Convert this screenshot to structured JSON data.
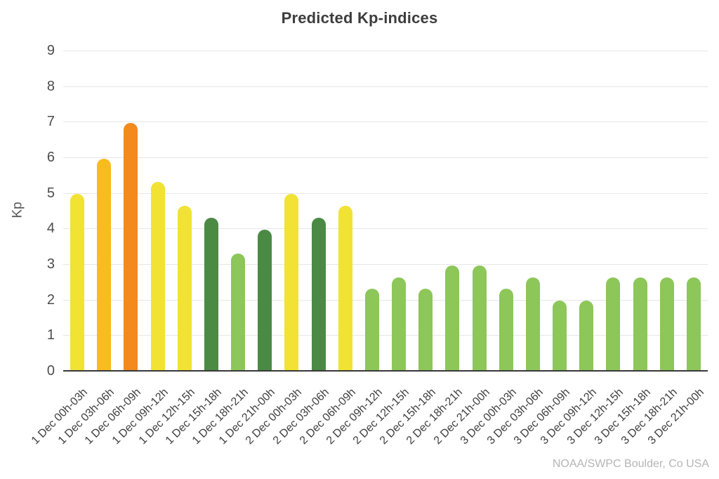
{
  "chart": {
    "title": "Predicted Kp-indices",
    "ylabel": "Kp",
    "watermark": "NOAA/SWPC Boulder, Co USA"
  },
  "chart_data": {
    "type": "bar",
    "title": "Predicted Kp-indices",
    "xlabel": "",
    "ylabel": "Kp",
    "ylim": [
      0,
      9
    ],
    "y_ticks": [
      0,
      1,
      2,
      3,
      4,
      5,
      6,
      7,
      8,
      9
    ],
    "grid": "horizontal",
    "legend": "none",
    "annotations": [
      "NOAA/SWPC Boulder, Co USA"
    ],
    "categories": [
      "1 Dec 00h-03h",
      "1 Dec 03h-06h",
      "1 Dec 06h-09h",
      "1 Dec 09h-12h",
      "1 Dec 12h-15h",
      "1 Dec 15h-18h",
      "1 Dec 18h-21h",
      "1 Dec 21h-00h",
      "2 Dec 00h-03h",
      "2 Dec 03h-06h",
      "2 Dec 06h-09h",
      "2 Dec 09h-12h",
      "2 Dec 12h-15h",
      "2 Dec 15h-18h",
      "2 Dec 18h-21h",
      "2 Dec 21h-00h",
      "3 Dec 00h-03h",
      "3 Dec 03h-06h",
      "3 Dec 06h-09h",
      "3 Dec 09h-12h",
      "3 Dec 12h-15h",
      "3 Dec 15h-18h",
      "3 Dec 18h-21h",
      "3 Dec 21h-00h"
    ],
    "values": [
      4.97,
      5.97,
      6.97,
      5.3,
      4.63,
      4.3,
      3.3,
      3.97,
      4.97,
      4.3,
      4.63,
      2.3,
      2.63,
      2.3,
      2.97,
      2.97,
      2.3,
      2.63,
      1.97,
      1.97,
      2.63,
      2.63,
      2.63,
      2.63
    ],
    "bar_colors": [
      "yellow",
      "amber",
      "orange",
      "yellow",
      "yellow",
      "dark_green",
      "light_green",
      "dark_green",
      "yellow",
      "dark_green",
      "yellow",
      "light_green",
      "light_green",
      "light_green",
      "light_green",
      "light_green",
      "light_green",
      "light_green",
      "light_green",
      "light_green",
      "light_green",
      "light_green",
      "light_green",
      "light_green"
    ],
    "palette": {
      "yellow": "#f1e234",
      "amber": "#f8bb20",
      "orange": "#f4891e",
      "dark_green": "#4a8a44",
      "light_green": "#8dc659"
    }
  }
}
